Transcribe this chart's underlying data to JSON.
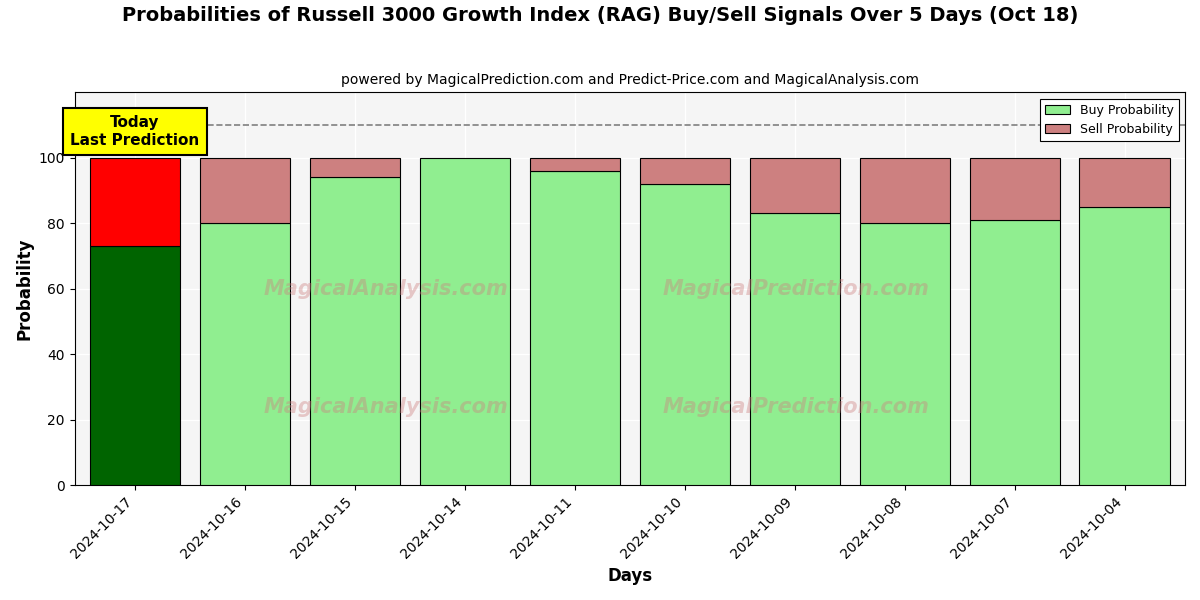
{
  "title": "Probabilities of Russell 3000 Growth Index (RAG) Buy/Sell Signals Over 5 Days (Oct 18)",
  "subtitle": "powered by MagicalPrediction.com and Predict-Price.com and MagicalAnalysis.com",
  "xlabel": "Days",
  "ylabel": "Probability",
  "categories": [
    "2024-10-17",
    "2024-10-16",
    "2024-10-15",
    "2024-10-14",
    "2024-10-11",
    "2024-10-10",
    "2024-10-09",
    "2024-10-08",
    "2024-10-07",
    "2024-10-04"
  ],
  "buy_values": [
    73,
    80,
    94,
    100,
    96,
    92,
    83,
    80,
    81,
    85
  ],
  "sell_values": [
    27,
    20,
    6,
    0,
    4,
    8,
    17,
    20,
    19,
    15
  ],
  "today_buy_color": "#006400",
  "today_sell_color": "#FF0000",
  "normal_buy_color": "#90EE90",
  "normal_sell_color": "#CD8080",
  "ylim": [
    0,
    120
  ],
  "yticks": [
    0,
    20,
    40,
    60,
    80,
    100
  ],
  "dashed_line_y": 110,
  "legend_buy_label": "Buy Probability",
  "legend_sell_label": "Sell Probability",
  "today_annotation": "Today\nLast Prediction",
  "watermark1": "MagicalAnalysis.com",
  "watermark2": "MagicalPrediction.com",
  "background_color": "#ffffff",
  "plot_bg_color": "#f5f5f5",
  "grid_color": "#ffffff"
}
